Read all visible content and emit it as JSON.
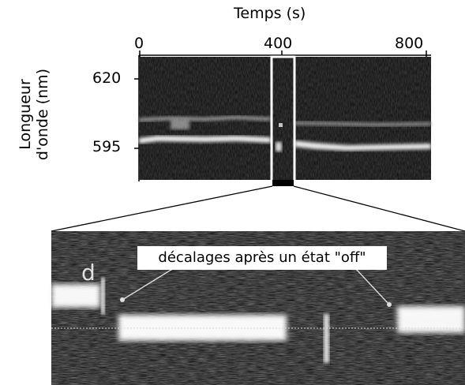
{
  "chart_data": {
    "type": "heatmap",
    "xlabel": "Temps (s)",
    "ylabel": "Longueur d'onde (nm)",
    "x_ticks": [
      "0",
      "400",
      "800"
    ],
    "y_ticks": [
      "620",
      "595"
    ],
    "xlim": [
      0,
      800
    ],
    "colors": {
      "background": "#0a0a0a",
      "band": "#f2f2f2",
      "axis": "#000000"
    }
  },
  "ylabel_lines": [
    "Longueur",
    "d'onde (nm)"
  ],
  "inset": {
    "panel_letter": "d",
    "annotation": "décalages après un état \"off\""
  }
}
